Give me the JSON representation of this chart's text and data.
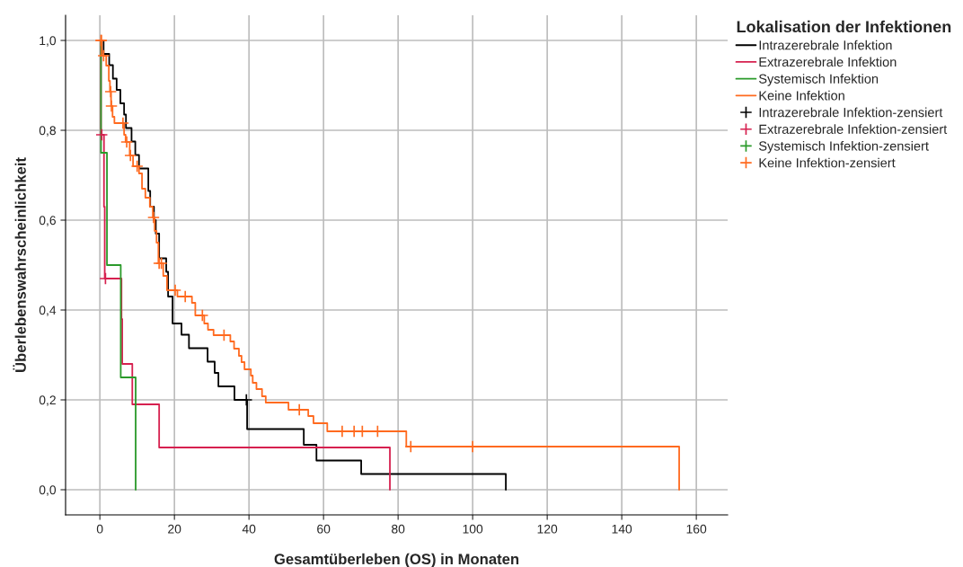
{
  "chart_data": {
    "type": "step",
    "xlabel": "Gesamtüberleben (OS) in Monaten",
    "ylabel": "Überlebenswahrscheinlichkeit",
    "legend_title": "Lokalisation der Infektionen",
    "xlim": [
      -9.2,
      168.4
    ],
    "ylim": [
      -0.056,
      1.056
    ],
    "xticks": [
      0,
      20,
      40,
      60,
      80,
      100,
      120,
      140,
      160
    ],
    "yticks": [
      {
        "value": 0,
        "label": "0,0"
      },
      {
        "value": 0.2,
        "label": "0,2"
      },
      {
        "value": 0.4,
        "label": "0,4"
      },
      {
        "value": 0.6,
        "label": "0,6"
      },
      {
        "value": 0.8,
        "label": "0,8"
      },
      {
        "value": 1.0,
        "label": "1,0"
      }
    ],
    "grid": true,
    "legend": "top right",
    "series": [
      {
        "name": "Intrazerebrale Infektion",
        "color": "#000000",
        "x": [
          0,
          1,
          2.5,
          3.5,
          4.5,
          5.5,
          6.5,
          7,
          8.5,
          9.5,
          10.5,
          13,
          13.5,
          14.5,
          15,
          15.9,
          17.8,
          18.3,
          19.5,
          21.9,
          23.9,
          28.9,
          30.8,
          31.8,
          36.1,
          39.5,
          54.7,
          58.1,
          70.1,
          108.9
        ],
        "values": [
          1.0,
          0.97,
          0.945,
          0.915,
          0.89,
          0.86,
          0.835,
          0.805,
          0.775,
          0.745,
          0.715,
          0.665,
          0.63,
          0.6,
          0.57,
          0.515,
          0.485,
          0.43,
          0.37,
          0.345,
          0.315,
          0.285,
          0.26,
          0.23,
          0.2,
          0.135,
          0.1,
          0.065,
          0.035,
          0
        ]
      },
      {
        "name": "Extrazerebrale Infektion",
        "color": "#d6204f",
        "x": [
          0,
          0.3,
          1.1,
          1.3,
          5.8,
          6.0,
          8.7,
          15.9,
          77.8
        ],
        "values": [
          1.0,
          0.79,
          0.63,
          0.47,
          0.38,
          0.28,
          0.19,
          0.094,
          0
        ]
      },
      {
        "name": "Systemisch Infektion",
        "color": "#2a9a2a",
        "x": [
          0,
          0.3,
          1.9,
          5.6,
          9.6
        ],
        "values": [
          1.0,
          0.75,
          0.5,
          0.25,
          0
        ]
      },
      {
        "name": "Keine Infektion",
        "color": "#ff6a1f",
        "x": [
          0,
          0.5,
          1.7,
          2.4,
          2.7,
          3.0,
          3.4,
          3.9,
          6.5,
          6.9,
          8.0,
          8.9,
          10.5,
          11.3,
          12.2,
          13.4,
          14.2,
          14.7,
          15.2,
          15.7,
          17.0,
          18.0,
          20.8,
          24.7,
          25.6,
          28.0,
          29.0,
          30.5,
          35.0,
          36.0,
          37.3,
          38.0,
          38.8,
          40.5,
          41.0,
          42.0,
          43.5,
          44.5,
          50.6,
          55.9,
          57.3,
          61.0,
          82.2,
          155.4
        ],
        "values": [
          1.0,
          0.966,
          0.944,
          0.91,
          0.886,
          0.854,
          0.83,
          0.816,
          0.79,
          0.774,
          0.744,
          0.72,
          0.704,
          0.67,
          0.65,
          0.63,
          0.606,
          0.576,
          0.55,
          0.504,
          0.476,
          0.444,
          0.43,
          0.416,
          0.388,
          0.37,
          0.356,
          0.344,
          0.33,
          0.314,
          0.298,
          0.284,
          0.268,
          0.254,
          0.238,
          0.224,
          0.208,
          0.194,
          0.178,
          0.164,
          0.148,
          0.13,
          0.096,
          0
        ]
      },
      {
        "name": "Intrazerebrale Infektion-zensiert",
        "type": "scatter",
        "marker": "cross",
        "color": "#000000",
        "x": [
          39.3
        ],
        "values": [
          0.2
        ]
      },
      {
        "name": "Extrazerebrale Infektion-zensiert",
        "type": "scatter",
        "marker": "cross",
        "color": "#d6204f",
        "x": [
          0.5,
          1.5
        ],
        "values": [
          0.79,
          0.47
        ]
      },
      {
        "name": "Systemisch Infektion-zensiert",
        "type": "scatter",
        "marker": "cross",
        "color": "#2a9a2a"
      },
      {
        "name": "Keine Infektion-zensiert",
        "type": "scatter",
        "marker": "cross",
        "color": "#ff6a1f",
        "x": [
          0.3,
          0.4,
          1.0,
          2.9,
          3.1,
          6.2,
          7.2,
          8.2,
          10.0,
          14.4,
          15.9,
          16.5,
          20.2,
          22.9,
          27.5,
          33.3,
          53.5,
          65,
          68.2,
          70.4,
          74.5,
          83.4,
          100
        ],
        "values": [
          1.0,
          1.0,
          0.966,
          0.886,
          0.854,
          0.816,
          0.774,
          0.744,
          0.72,
          0.606,
          0.504,
          0.504,
          0.444,
          0.43,
          0.388,
          0.344,
          0.178,
          0.13,
          0.13,
          0.13,
          0.13,
          0.096,
          0.096
        ]
      }
    ]
  }
}
